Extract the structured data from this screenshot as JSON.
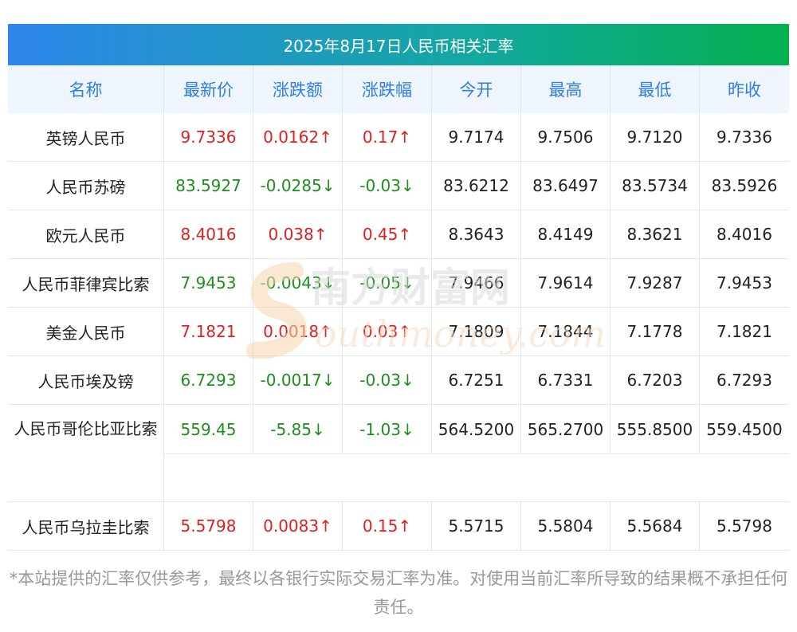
{
  "title": "2025年8月17日人民币相关汇率",
  "headers": [
    "名称",
    "最新价",
    "涨跌额",
    "涨跌幅",
    "今开",
    "最高",
    "最低",
    "昨收"
  ],
  "rows": [
    {
      "name": "英镑人民币",
      "last": "9.7336",
      "chg": "0.0162↑",
      "pct": "0.17↑",
      "open": "9.7174",
      "high": "9.7506",
      "low": "9.7120",
      "prev": "9.7336",
      "dir": "up"
    },
    {
      "name": "人民币苏磅",
      "last": "83.5927",
      "chg": "-0.0285↓",
      "pct": "-0.03↓",
      "open": "83.6212",
      "high": "83.6497",
      "low": "83.5734",
      "prev": "83.5926",
      "dir": "down"
    },
    {
      "name": "欧元人民币",
      "last": "8.4016",
      "chg": "0.038↑",
      "pct": "0.45↑",
      "open": "8.3643",
      "high": "8.4149",
      "low": "8.3621",
      "prev": "8.4016",
      "dir": "up"
    },
    {
      "name": "人民币菲律宾比索",
      "last": "7.9453",
      "chg": "-0.0043↓",
      "pct": "-0.05↓",
      "open": "7.9466",
      "high": "7.9614",
      "low": "7.9287",
      "prev": "7.9453",
      "dir": "down"
    },
    {
      "name": "美金人民币",
      "last": "7.1821",
      "chg": "0.0018↑",
      "pct": "0.03↑",
      "open": "7.1809",
      "high": "7.1844",
      "low": "7.1778",
      "prev": "7.1821",
      "dir": "up"
    },
    {
      "name": "人民币埃及镑",
      "last": "6.7293",
      "chg": "-0.0017↓",
      "pct": "-0.03↓",
      "open": "6.7251",
      "high": "6.7331",
      "low": "6.7203",
      "prev": "6.7293",
      "dir": "down"
    },
    {
      "name": "人民币哥伦比亚比索",
      "last": "559.45",
      "chg": "-5.85↓",
      "pct": "-1.03↓",
      "open": "564.5200",
      "high": "565.2700",
      "low": "555.8500",
      "prev": "559.4500",
      "dir": "down"
    },
    {
      "name": "人民币乌拉圭比索",
      "last": "5.5798",
      "chg": "0.0083↑",
      "pct": "0.15↑",
      "open": "5.5715",
      "high": "5.5804",
      "low": "5.5684",
      "prev": "5.5798",
      "dir": "up"
    }
  ],
  "colors": {
    "up": "#e02020",
    "down": "#1e8f1e",
    "header_text": "#2f7ee6",
    "header_bg": "#eef5fd"
  },
  "watermark": {
    "cn": "南方财富网",
    "en": "outhmoney.com"
  },
  "footer": "*本站提供的汇率仅供参考，最终以各银行实际交易汇率为准。对使用当前汇率所导致的结果概不承担任何责任。"
}
